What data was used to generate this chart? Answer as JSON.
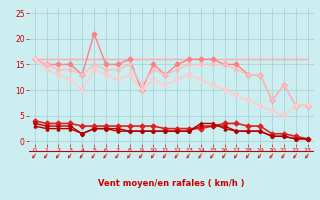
{
  "background_color": "#cceef0",
  "grid_color": "#aad4d8",
  "xlabel": "Vent moyen/en rafales ( km/h )",
  "xlabel_color": "#cc0000",
  "tick_color": "#cc0000",
  "ylim": [
    -0.5,
    26
  ],
  "xlim": [
    -0.5,
    23.5
  ],
  "yticks": [
    0,
    5,
    10,
    15,
    20,
    25
  ],
  "xticks": [
    0,
    1,
    2,
    3,
    4,
    5,
    6,
    7,
    8,
    9,
    10,
    11,
    12,
    13,
    14,
    15,
    16,
    17,
    18,
    19,
    20,
    21,
    22,
    23
  ],
  "line1_x": [
    0,
    1,
    2,
    3,
    4,
    5,
    6,
    7,
    8,
    9,
    10,
    11,
    12,
    13,
    14,
    15,
    16,
    17,
    18,
    19,
    20,
    21,
    22,
    23
  ],
  "line1_y": [
    16,
    16,
    16,
    16,
    16,
    16,
    16,
    16,
    16,
    16,
    16,
    16,
    16,
    16,
    16,
    16,
    16,
    16,
    16,
    16,
    16,
    16,
    16,
    16
  ],
  "line1_color": "#ffaaaa",
  "line1_lw": 1.0,
  "line2_x": [
    0,
    1,
    2,
    3,
    4,
    5,
    6,
    7,
    8,
    9,
    10,
    11,
    12,
    13,
    14,
    15,
    16,
    17,
    18,
    19,
    20,
    21,
    22,
    23
  ],
  "line2_y": [
    16,
    15,
    15,
    15,
    13,
    21,
    15,
    15,
    16,
    10,
    15,
    13,
    15,
    16,
    16,
    16,
    15,
    15,
    13,
    13,
    8,
    11,
    7,
    7
  ],
  "line2_color": "#ff8080",
  "line2_lw": 1.0,
  "line2_marker": "D",
  "line2_ms": 2.5,
  "line3_x": [
    0,
    1,
    2,
    3,
    4,
    5,
    6,
    7,
    8,
    9,
    10,
    11,
    12,
    13,
    14,
    15,
    16,
    17,
    18,
    19,
    20,
    21,
    22,
    23
  ],
  "line3_y": [
    16,
    15,
    14,
    14,
    13,
    15,
    14,
    14,
    15,
    11,
    14,
    13,
    14,
    15,
    15,
    15,
    15,
    14,
    13,
    13,
    8,
    11,
    7,
    7
  ],
  "line3_color": "#ffbbbb",
  "line3_lw": 1.0,
  "line3_marker": "D",
  "line3_ms": 2.0,
  "line4_x": [
    0,
    1,
    2,
    3,
    4,
    5,
    6,
    7,
    8,
    9,
    10,
    11,
    12,
    13,
    14,
    15,
    16,
    17,
    18,
    19,
    20,
    21,
    22,
    23
  ],
  "line4_y": [
    16,
    14,
    13,
    12,
    10,
    14,
    13,
    12,
    13,
    10,
    12,
    11,
    12,
    13,
    12,
    11,
    10,
    9,
    8,
    7,
    6,
    5,
    7,
    7
  ],
  "line4_color": "#ffcccc",
  "line4_lw": 1.2,
  "line4_marker": "v",
  "line4_ms": 3,
  "line5_x": [
    0,
    1,
    2,
    3,
    4,
    5,
    6,
    7,
    8,
    9,
    10,
    11,
    12,
    13,
    14,
    15,
    16,
    17,
    18,
    19,
    20,
    21,
    22,
    23
  ],
  "line5_y": [
    4,
    3.5,
    3.5,
    3.5,
    3,
    3,
    3,
    3,
    3,
    3,
    3,
    2.5,
    2.5,
    2.5,
    2.5,
    3,
    3.5,
    3.5,
    3,
    3,
    1.5,
    1.5,
    1,
    0.5
  ],
  "line5_color": "#dd2222",
  "line5_lw": 1.2,
  "line5_marker": "D",
  "line5_ms": 2.5,
  "line6_x": [
    0,
    1,
    2,
    3,
    4,
    5,
    6,
    7,
    8,
    9,
    10,
    11,
    12,
    13,
    14,
    15,
    16,
    17,
    18,
    19,
    20,
    21,
    22,
    23
  ],
  "line6_y": [
    3.5,
    3,
    3,
    3,
    1.5,
    2.5,
    2.5,
    2.5,
    2,
    2,
    2,
    2,
    2,
    2,
    3,
    3,
    3,
    2,
    2,
    2,
    1,
    1,
    0.5,
    0.5
  ],
  "line6_color": "#cc0000",
  "line6_lw": 1.0,
  "line6_marker": "D",
  "line6_ms": 2.0,
  "line7_x": [
    0,
    1,
    2,
    3,
    4,
    5,
    6,
    7,
    8,
    9,
    10,
    11,
    12,
    13,
    14,
    15,
    16,
    17,
    18,
    19,
    20,
    21,
    22,
    23
  ],
  "line7_y": [
    3,
    2.5,
    2.5,
    2.5,
    1.5,
    2.5,
    2.5,
    2,
    2,
    2,
    2,
    2,
    2,
    2,
    3.5,
    3.5,
    2.5,
    2,
    2,
    2,
    1,
    1,
    0.5,
    0.5
  ],
  "line7_color": "#aa0000",
  "line7_lw": 1.0,
  "line7_marker": "^",
  "line7_ms": 2,
  "arrow_color": "#cc2222",
  "hline_color": "#cc0000"
}
